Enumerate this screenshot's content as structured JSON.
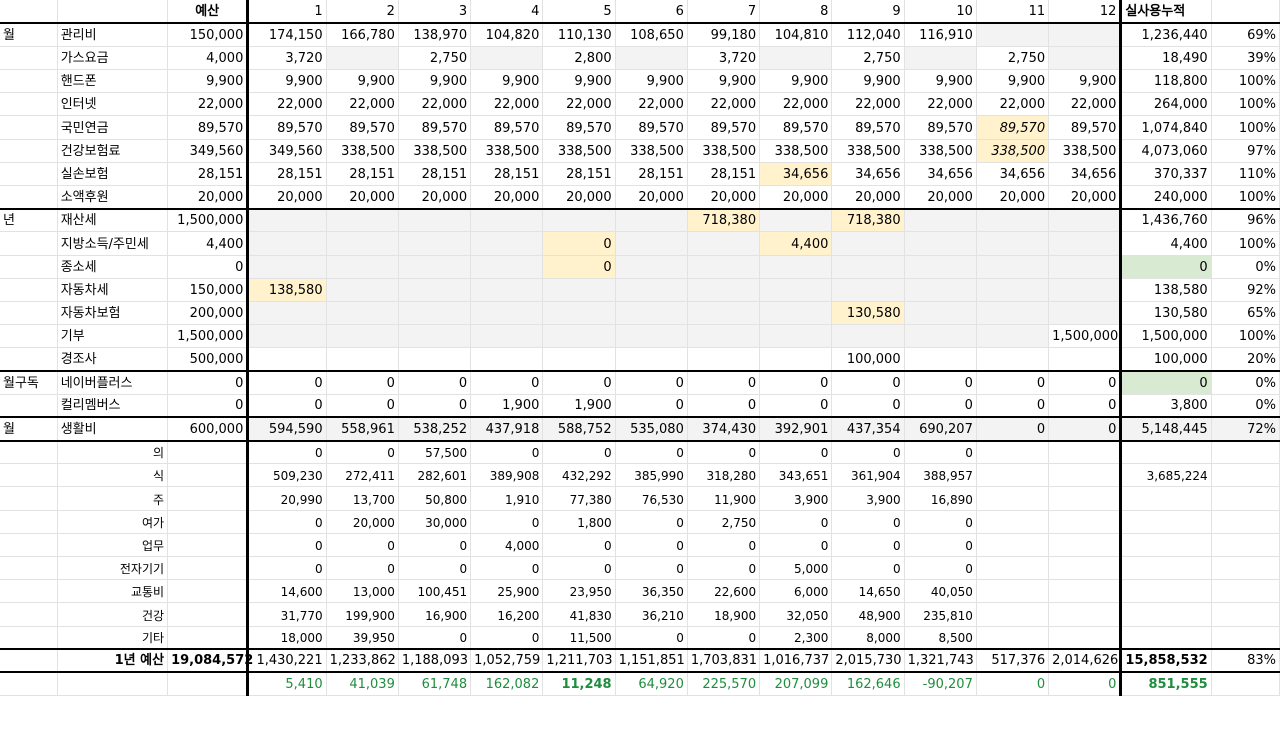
{
  "months": [
    "1",
    "2",
    "3",
    "4",
    "5",
    "6",
    "7",
    "8",
    "9",
    "10",
    "11",
    "12"
  ],
  "header": {
    "budget": "예산",
    "total": "실사용누적"
  },
  "rows": [
    {
      "group": "월",
      "label": "관리비",
      "budget": "150,000",
      "m": [
        "174,150",
        "166,780",
        "138,970",
        "104,820",
        "110,130",
        "108,650",
        "99,180",
        "104,810",
        "112,040",
        "116,910",
        "",
        ""
      ],
      "total": "1,236,440",
      "pct": "69%"
    },
    {
      "group": "",
      "label": "가스요금",
      "budget": "4,000",
      "m": [
        "3,720",
        "",
        "2,750",
        "",
        "2,800",
        "",
        "3,720",
        "",
        "2,750",
        "",
        "2,750",
        ""
      ],
      "total": "18,490",
      "pct": "39%"
    },
    {
      "group": "",
      "label": "핸드폰",
      "budget": "9,900",
      "m": [
        "9,900",
        "9,900",
        "9,900",
        "9,900",
        "9,900",
        "9,900",
        "9,900",
        "9,900",
        "9,900",
        "9,900",
        "9,900",
        "9,900"
      ],
      "total": "118,800",
      "pct": "100%"
    },
    {
      "group": "",
      "label": "인터넷",
      "budget": "22,000",
      "m": [
        "22,000",
        "22,000",
        "22,000",
        "22,000",
        "22,000",
        "22,000",
        "22,000",
        "22,000",
        "22,000",
        "22,000",
        "22,000",
        "22,000"
      ],
      "total": "264,000",
      "pct": "100%"
    },
    {
      "group": "",
      "label": "국민연금",
      "budget": "89,570",
      "m": [
        "89,570",
        "89,570",
        "89,570",
        "89,570",
        "89,570",
        "89,570",
        "89,570",
        "89,570",
        "89,570",
        "89,570",
        "89,570",
        "89,570"
      ],
      "total": "1,074,840",
      "pct": "100%"
    },
    {
      "group": "",
      "label": "건강보험료",
      "budget": "349,560",
      "m": [
        "349,560",
        "338,500",
        "338,500",
        "338,500",
        "338,500",
        "338,500",
        "338,500",
        "338,500",
        "338,500",
        "338,500",
        "338,500",
        "338,500"
      ],
      "total": "4,073,060",
      "pct": "97%"
    },
    {
      "group": "",
      "label": "실손보험",
      "budget": "28,151",
      "m": [
        "28,151",
        "28,151",
        "28,151",
        "28,151",
        "28,151",
        "28,151",
        "28,151",
        "34,656",
        "34,656",
        "34,656",
        "34,656",
        "34,656"
      ],
      "total": "370,337",
      "pct": "110%"
    },
    {
      "group": "",
      "label": "소액후원",
      "budget": "20,000",
      "m": [
        "20,000",
        "20,000",
        "20,000",
        "20,000",
        "20,000",
        "20,000",
        "20,000",
        "20,000",
        "20,000",
        "20,000",
        "20,000",
        "20,000"
      ],
      "total": "240,000",
      "pct": "100%"
    },
    {
      "group": "년",
      "label": "재산세",
      "budget": "1,500,000",
      "m": [
        "",
        "",
        "",
        "",
        "",
        "",
        "718,380",
        "",
        "718,380",
        "",
        "",
        ""
      ],
      "total": "1,436,760",
      "pct": "96%"
    },
    {
      "group": "",
      "label": "지방소득/주민세",
      "budget": "4,400",
      "m": [
        "",
        "",
        "",
        "",
        "0",
        "",
        "",
        "4,400",
        "",
        "",
        "",
        ""
      ],
      "total": "4,400",
      "pct": "100%"
    },
    {
      "group": "",
      "label": "종소세",
      "budget": "0",
      "m": [
        "",
        "",
        "",
        "",
        "0",
        "",
        "",
        "",
        "",
        "",
        "",
        ""
      ],
      "total": "0",
      "pct": "0%"
    },
    {
      "group": "",
      "label": "자동차세",
      "budget": "150,000",
      "m": [
        "138,580",
        "",
        "",
        "",
        "",
        "",
        "",
        "",
        "",
        "",
        "",
        ""
      ],
      "total": "138,580",
      "pct": "92%"
    },
    {
      "group": "",
      "label": "자동차보험",
      "budget": "200,000",
      "m": [
        "",
        "",
        "",
        "",
        "",
        "",
        "",
        "",
        "130,580",
        "",
        "",
        ""
      ],
      "total": "130,580",
      "pct": "65%"
    },
    {
      "group": "",
      "label": "기부",
      "budget": "1,500,000",
      "m": [
        "",
        "",
        "",
        "",
        "",
        "",
        "",
        "",
        "",
        "",
        "",
        "1,500,000"
      ],
      "total": "1,500,000",
      "pct": "100%"
    },
    {
      "group": "",
      "label": "경조사",
      "budget": "500,000",
      "m": [
        "",
        "",
        "",
        "",
        "",
        "",
        "",
        "",
        "100,000",
        "",
        "",
        ""
      ],
      "total": "100,000",
      "pct": "20%"
    },
    {
      "group": "월구독",
      "label": "네이버플러스",
      "budget": "0",
      "m": [
        "0",
        "0",
        "0",
        "0",
        "0",
        "0",
        "0",
        "0",
        "0",
        "0",
        "0",
        "0"
      ],
      "total": "0",
      "pct": "0%"
    },
    {
      "group": "",
      "label": "컬리멤버스",
      "budget": "0",
      "m": [
        "0",
        "0",
        "0",
        "1,900",
        "1,900",
        "0",
        "0",
        "0",
        "0",
        "0",
        "0",
        "0"
      ],
      "total": "3,800",
      "pct": "0%"
    },
    {
      "group": "월",
      "label": "생활비",
      "budget": "600,000",
      "m": [
        "594,590",
        "558,961",
        "538,252",
        "437,918",
        "588,752",
        "535,080",
        "374,430",
        "392,901",
        "437,354",
        "690,207",
        "0",
        "0"
      ],
      "total": "5,148,445",
      "pct": "72%"
    }
  ],
  "subrows": [
    {
      "label": "의",
      "m": [
        "0",
        "0",
        "57,500",
        "0",
        "0",
        "0",
        "0",
        "0",
        "0",
        "0",
        "",
        ""
      ],
      "total": ""
    },
    {
      "label": "식",
      "m": [
        "509,230",
        "272,411",
        "282,601",
        "389,908",
        "432,292",
        "385,990",
        "318,280",
        "343,651",
        "361,904",
        "388,957",
        "",
        ""
      ],
      "total": "3,685,224"
    },
    {
      "label": "주",
      "m": [
        "20,990",
        "13,700",
        "50,800",
        "1,910",
        "77,380",
        "76,530",
        "11,900",
        "3,900",
        "3,900",
        "16,890",
        "",
        ""
      ],
      "total": ""
    },
    {
      "label": "여가",
      "m": [
        "0",
        "20,000",
        "30,000",
        "0",
        "1,800",
        "0",
        "2,750",
        "0",
        "0",
        "0",
        "",
        ""
      ],
      "total": ""
    },
    {
      "label": "업무",
      "m": [
        "0",
        "0",
        "0",
        "4,000",
        "0",
        "0",
        "0",
        "0",
        "0",
        "0",
        "",
        ""
      ],
      "total": ""
    },
    {
      "label": "전자기기",
      "m": [
        "0",
        "0",
        "0",
        "0",
        "0",
        "0",
        "0",
        "5,000",
        "0",
        "0",
        "",
        ""
      ],
      "total": ""
    },
    {
      "label": "교통비",
      "m": [
        "14,600",
        "13,000",
        "100,451",
        "25,900",
        "23,950",
        "36,350",
        "22,600",
        "6,000",
        "14,650",
        "40,050",
        "",
        ""
      ],
      "total": ""
    },
    {
      "label": "건강",
      "m": [
        "31,770",
        "199,900",
        "16,900",
        "16,200",
        "41,830",
        "36,210",
        "18,900",
        "32,050",
        "48,900",
        "235,810",
        "",
        ""
      ],
      "total": ""
    },
    {
      "label": "기타",
      "m": [
        "18,000",
        "39,950",
        "0",
        "0",
        "11,500",
        "0",
        "0",
        "2,300",
        "8,000",
        "8,500",
        "",
        ""
      ],
      "total": ""
    }
  ],
  "summary": {
    "label": "1년 예산",
    "budget": "19,084,572",
    "m": [
      "1,430,221",
      "1,233,862",
      "1,188,093",
      "1,052,759",
      "1,211,703",
      "1,151,851",
      "1,703,831",
      "1,016,737",
      "2,015,730",
      "1,321,743",
      "517,376",
      "2,014,626"
    ],
    "total": "15,858,532",
    "pct": "83%"
  },
  "diff": {
    "m": [
      "5,410",
      "41,039",
      "61,748",
      "162,082",
      "11,248",
      "64,920",
      "225,570",
      "207,099",
      "162,646",
      "-90,207",
      "0",
      "0"
    ],
    "total": "851,555"
  }
}
